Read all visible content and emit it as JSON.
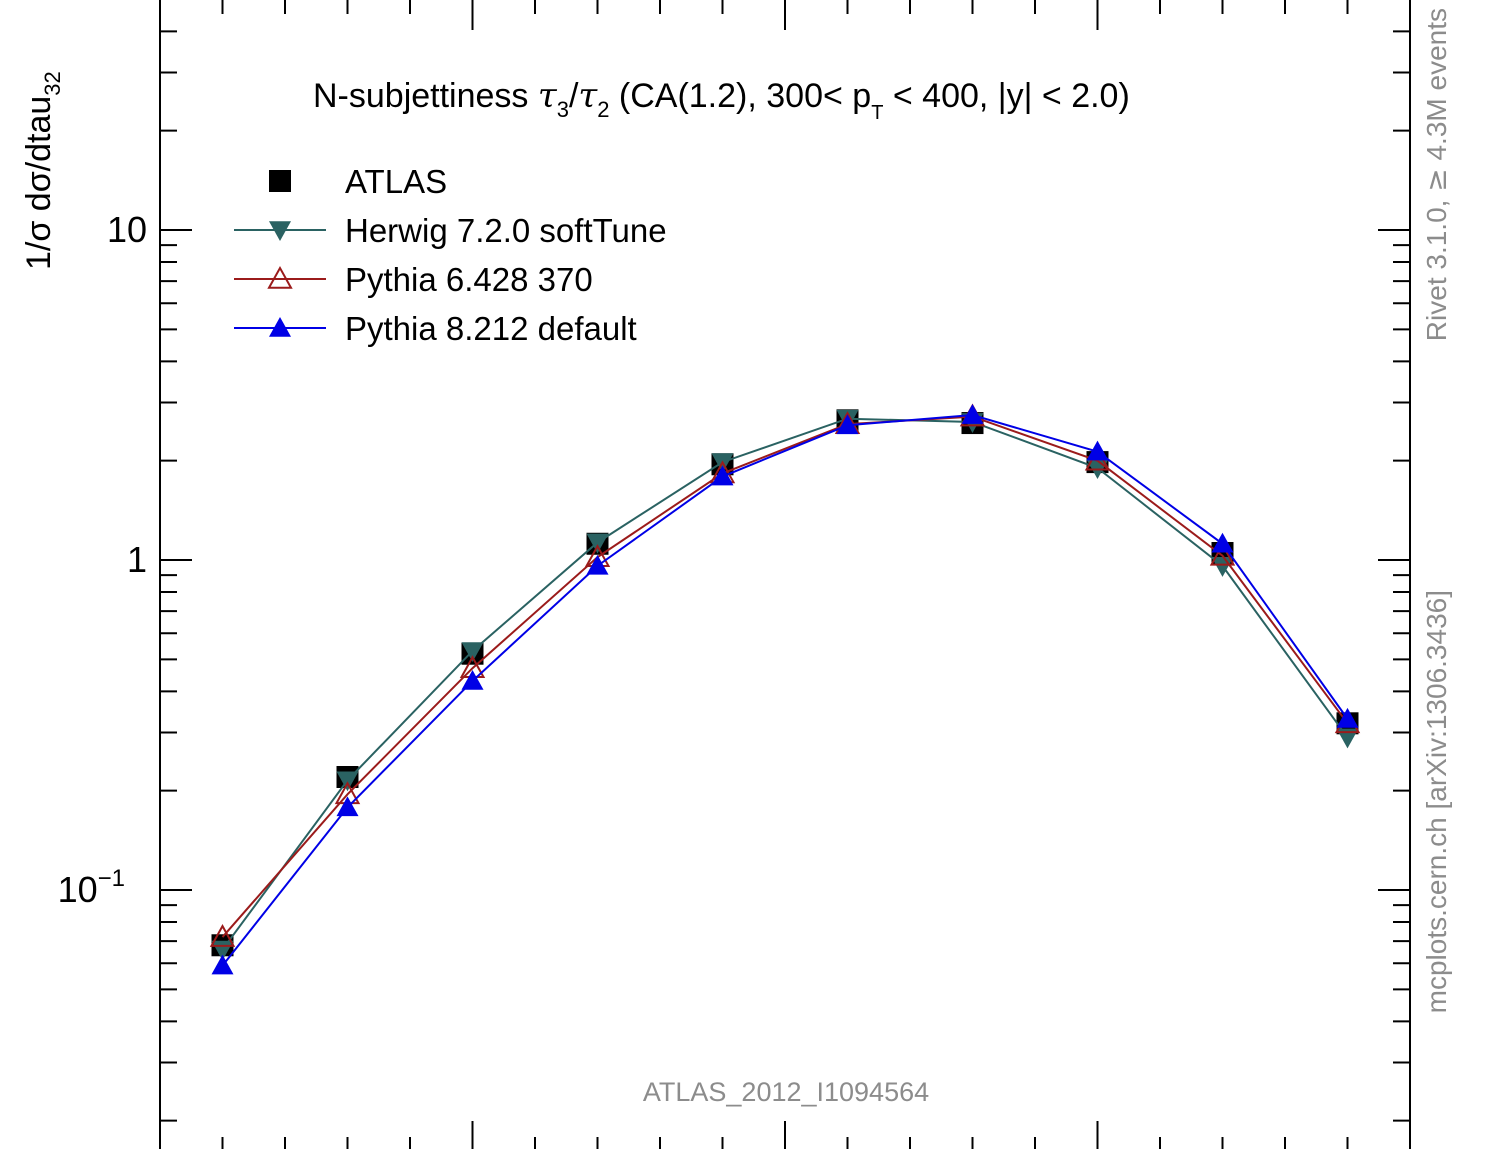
{
  "chart_data": {
    "type": "line",
    "title": {
      "prefix": "N-subjettiness ",
      "tau": "τ",
      "sub_num": "3",
      "slash": "/",
      "sub_den": "2",
      "suffix_a": " (CA(1.2), 300< p",
      "sub_pt": "T",
      "suffix_b": " < 400, |y| < 2.0)"
    },
    "ylabel": {
      "main": "1/σ dσ/dtau",
      "sub": "32"
    },
    "yscale": "log",
    "ylim": [
      0.0182,
      45
    ],
    "xlim": [
      0.0,
      1.0
    ],
    "yticks": [
      {
        "value": 10,
        "label": "10",
        "sup": ""
      },
      {
        "value": 1,
        "label": "1",
        "sup": ""
      },
      {
        "value": 0.1,
        "label": "10",
        "sup": "−1"
      }
    ],
    "x": [
      0.05,
      0.15,
      0.25,
      0.35,
      0.45,
      0.55,
      0.65,
      0.75,
      0.85,
      0.95
    ],
    "series": [
      {
        "name": "ATLAS",
        "color": "#000000",
        "marker": "square",
        "line": false,
        "values": [
          0.068,
          0.22,
          0.52,
          1.12,
          1.95,
          2.65,
          2.6,
          1.98,
          1.05,
          0.32
        ]
      },
      {
        "name": "Herwig 7.2.0 softTune",
        "color": "#2a6262",
        "marker": "triangle-down",
        "line": true,
        "values": [
          0.066,
          0.215,
          0.53,
          1.13,
          1.98,
          2.68,
          2.62,
          1.9,
          0.96,
          0.29
        ]
      },
      {
        "name": "Pythia 6.428 370",
        "color": "#9b1b1b",
        "marker": "triangle-up-open",
        "line": true,
        "values": [
          0.072,
          0.195,
          0.47,
          1.02,
          1.83,
          2.58,
          2.72,
          2.0,
          1.03,
          0.32
        ]
      },
      {
        "name": "Pythia 8.212 default",
        "color": "#0000e6",
        "marker": "triangle-up",
        "line": true,
        "values": [
          0.059,
          0.178,
          0.43,
          0.96,
          1.79,
          2.56,
          2.75,
          2.13,
          1.12,
          0.33
        ]
      }
    ],
    "legend_position": "top-left",
    "analysis_label": "ATLAS_2012_I1094564",
    "side_labels": {
      "top": {
        "prefix": "Rivet 3.1.0, ",
        "symbol": "≥",
        "suffix": " 4.3M events"
      },
      "bottom": "mcplots.cern.ch [arXiv:1306.3436]"
    }
  }
}
